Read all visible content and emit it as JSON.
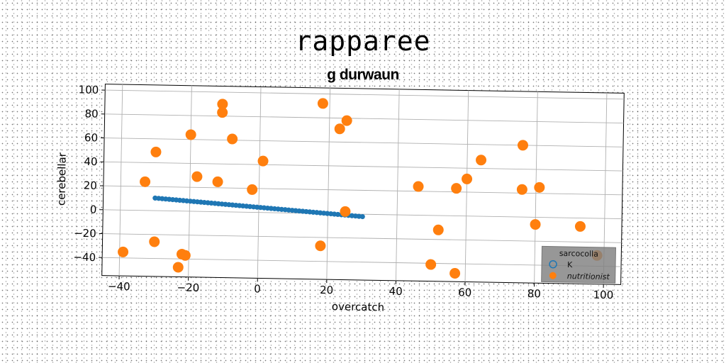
{
  "chart_data": {
    "type": "scatter",
    "title": "rapparee",
    "subtitle": "g durwaun",
    "xlabel": "overcatch",
    "ylabel": "cerebellar",
    "xlim": [
      -45,
      105
    ],
    "ylim": [
      -55,
      105
    ],
    "xticks": [
      -40,
      -20,
      0,
      20,
      40,
      60,
      80,
      100
    ],
    "yticks": [
      -40,
      -20,
      0,
      20,
      40,
      60,
      80,
      100
    ],
    "grid": true,
    "legend": {
      "title": "sarcocolla",
      "placement": "lower-right",
      "entries": [
        "K",
        "nutritionist"
      ]
    },
    "colors": {
      "K": "#1f77b4",
      "nutritionist": "#ff7f0e"
    },
    "series": [
      {
        "name": "K",
        "x_range": [
          -30,
          30
        ],
        "y_range": [
          10.5,
          -2
        ],
        "count": 60
      },
      {
        "name": "nutritionist",
        "points": [
          [
            -39,
            -35
          ],
          [
            -33,
            24
          ],
          [
            -30,
            49
          ],
          [
            -30,
            -26
          ],
          [
            -23,
            -47
          ],
          [
            -22,
            -36
          ],
          [
            -21,
            -37
          ],
          [
            -20,
            64
          ],
          [
            -18,
            29
          ],
          [
            -12,
            25
          ],
          [
            -11,
            90
          ],
          [
            -11,
            83
          ],
          [
            -8,
            61
          ],
          [
            -2,
            19
          ],
          [
            1,
            43
          ],
          [
            18,
            92
          ],
          [
            18,
            -27
          ],
          [
            23,
            71
          ],
          [
            25,
            78
          ],
          [
            25,
            2
          ],
          [
            46,
            24
          ],
          [
            50,
            -41
          ],
          [
            52,
            -12
          ],
          [
            57,
            23
          ],
          [
            57,
            -48
          ],
          [
            60,
            31
          ],
          [
            64,
            47
          ],
          [
            76,
            60
          ],
          [
            76,
            23
          ],
          [
            80,
            -6
          ],
          [
            81,
            25
          ],
          [
            93,
            -7
          ],
          [
            98,
            -31
          ]
        ]
      }
    ]
  }
}
